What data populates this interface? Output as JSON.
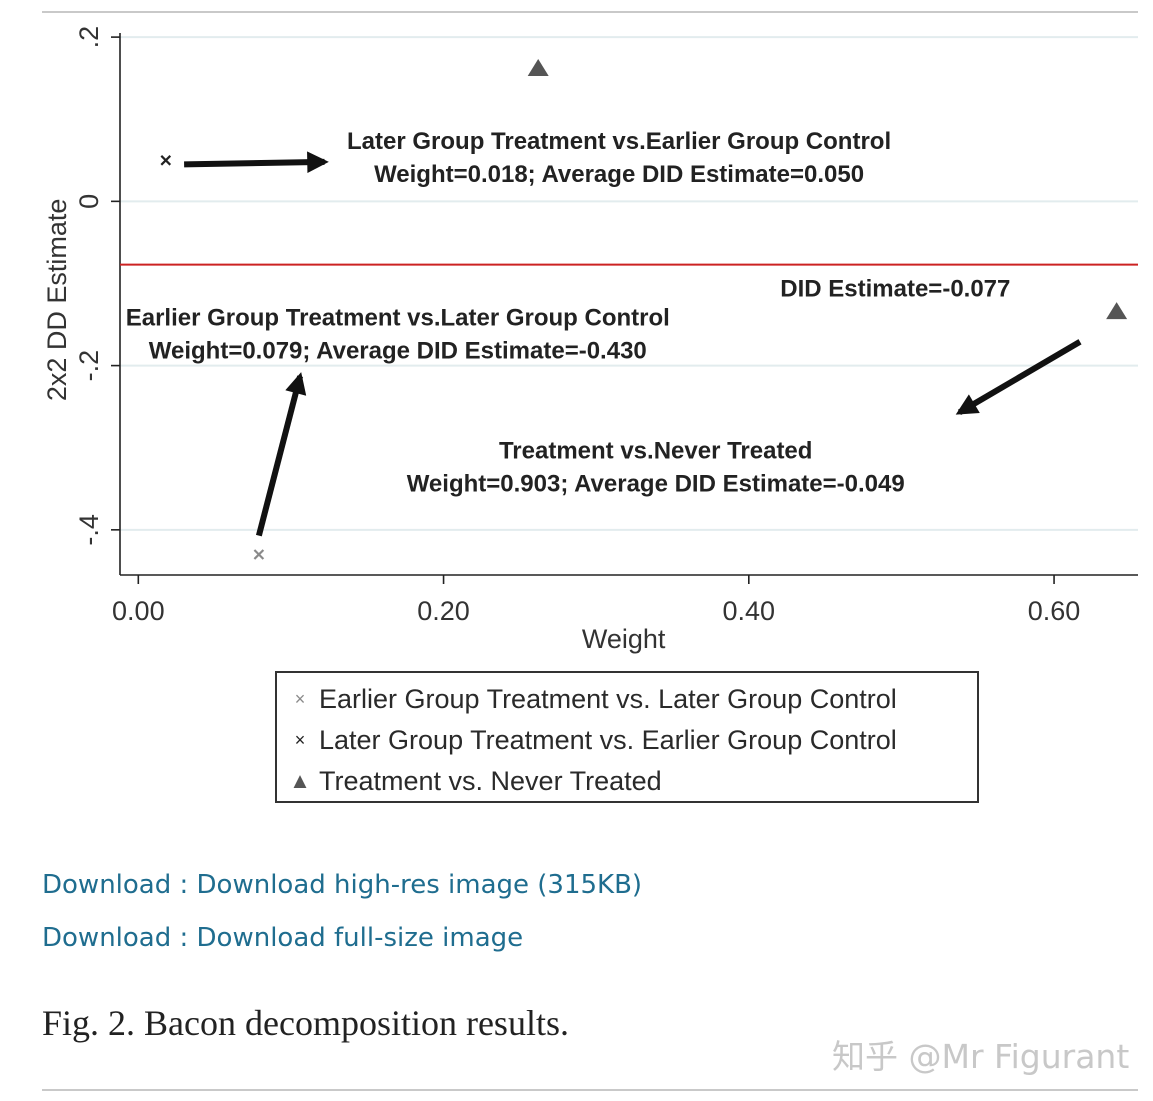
{
  "chart_data": {
    "type": "scatter",
    "xlabel": "Weight",
    "ylabel": "2x2 DD Estimate",
    "xlim": [
      -0.012,
      0.655
    ],
    "ylim": [
      -0.455,
      0.205
    ],
    "x_ticks": [
      0.0,
      0.2,
      0.4,
      0.6
    ],
    "x_tick_labels": [
      "0.00",
      "0.20",
      "0.40",
      "0.60"
    ],
    "y_ticks": [
      0.2,
      0,
      -0.2,
      -0.4
    ],
    "y_tick_labels": [
      ".2",
      "0",
      "-.2",
      "-.4"
    ],
    "grid": true,
    "reference_line": {
      "y": -0.077,
      "label": "DID Estimate=-0.077",
      "color": "#cc2222"
    },
    "series": [
      {
        "name": "Earlier Group Treatment vs. Later Group Control",
        "marker": "x-light",
        "points": [
          {
            "x": 0.079,
            "y": -0.43
          }
        ]
      },
      {
        "name": "Later Group Treatment vs. Earlier Group Control",
        "marker": "x-dark",
        "points": [
          {
            "x": 0.018,
            "y": 0.05
          }
        ]
      },
      {
        "name": "Treatment vs. Never Treated",
        "marker": "triangle",
        "points": [
          {
            "x": 0.262,
            "y": 0.163
          },
          {
            "x": 0.641,
            "y": -0.133
          }
        ]
      }
    ],
    "annotations": [
      {
        "id": "later",
        "lines": [
          "Later Group Treatment vs.Earlier Group Control",
          "Weight=0.018; Average DID Estimate=0.050"
        ],
        "x": 0.315,
        "y": 0.064
      },
      {
        "id": "earlier",
        "lines": [
          "Earlier Group Treatment vs.Later Group Control",
          "Weight=0.079; Average DID Estimate=-0.430"
        ],
        "x": 0.17,
        "y": -0.151
      },
      {
        "id": "never",
        "lines": [
          "Treatment vs.Never Treated",
          "Weight=0.903; Average DID Estimate=-0.049"
        ],
        "x": 0.339,
        "y": -0.313
      },
      {
        "id": "did",
        "lines": [
          "DID Estimate=-0.077"
        ],
        "x": 0.496,
        "y": -0.116
      }
    ],
    "arrows": [
      {
        "from": [
          0.03,
          0.045
        ],
        "to": [
          0.122,
          0.048
        ]
      },
      {
        "from": [
          0.079,
          -0.407
        ],
        "to": [
          0.106,
          -0.213
        ]
      },
      {
        "from": [
          0.617,
          -0.171
        ],
        "to": [
          0.538,
          -0.257
        ]
      }
    ]
  },
  "legend": {
    "items": [
      {
        "symbol": "×",
        "color": "#8a8a8a",
        "label": "Earlier Group Treatment vs. Later Group Control"
      },
      {
        "symbol": "×",
        "color": "#222222",
        "label": "Later Group Treatment vs. Earlier Group Control"
      },
      {
        "symbol": "▲",
        "color": "#555555",
        "label": "Treatment vs. Never Treated"
      }
    ]
  },
  "links": {
    "download_highres": "Download : Download high-res image (315KB)",
    "download_full": "Download : Download full-size image"
  },
  "caption": "Fig. 2. Bacon decomposition results.",
  "watermark": "知乎 @Mr Figurant"
}
